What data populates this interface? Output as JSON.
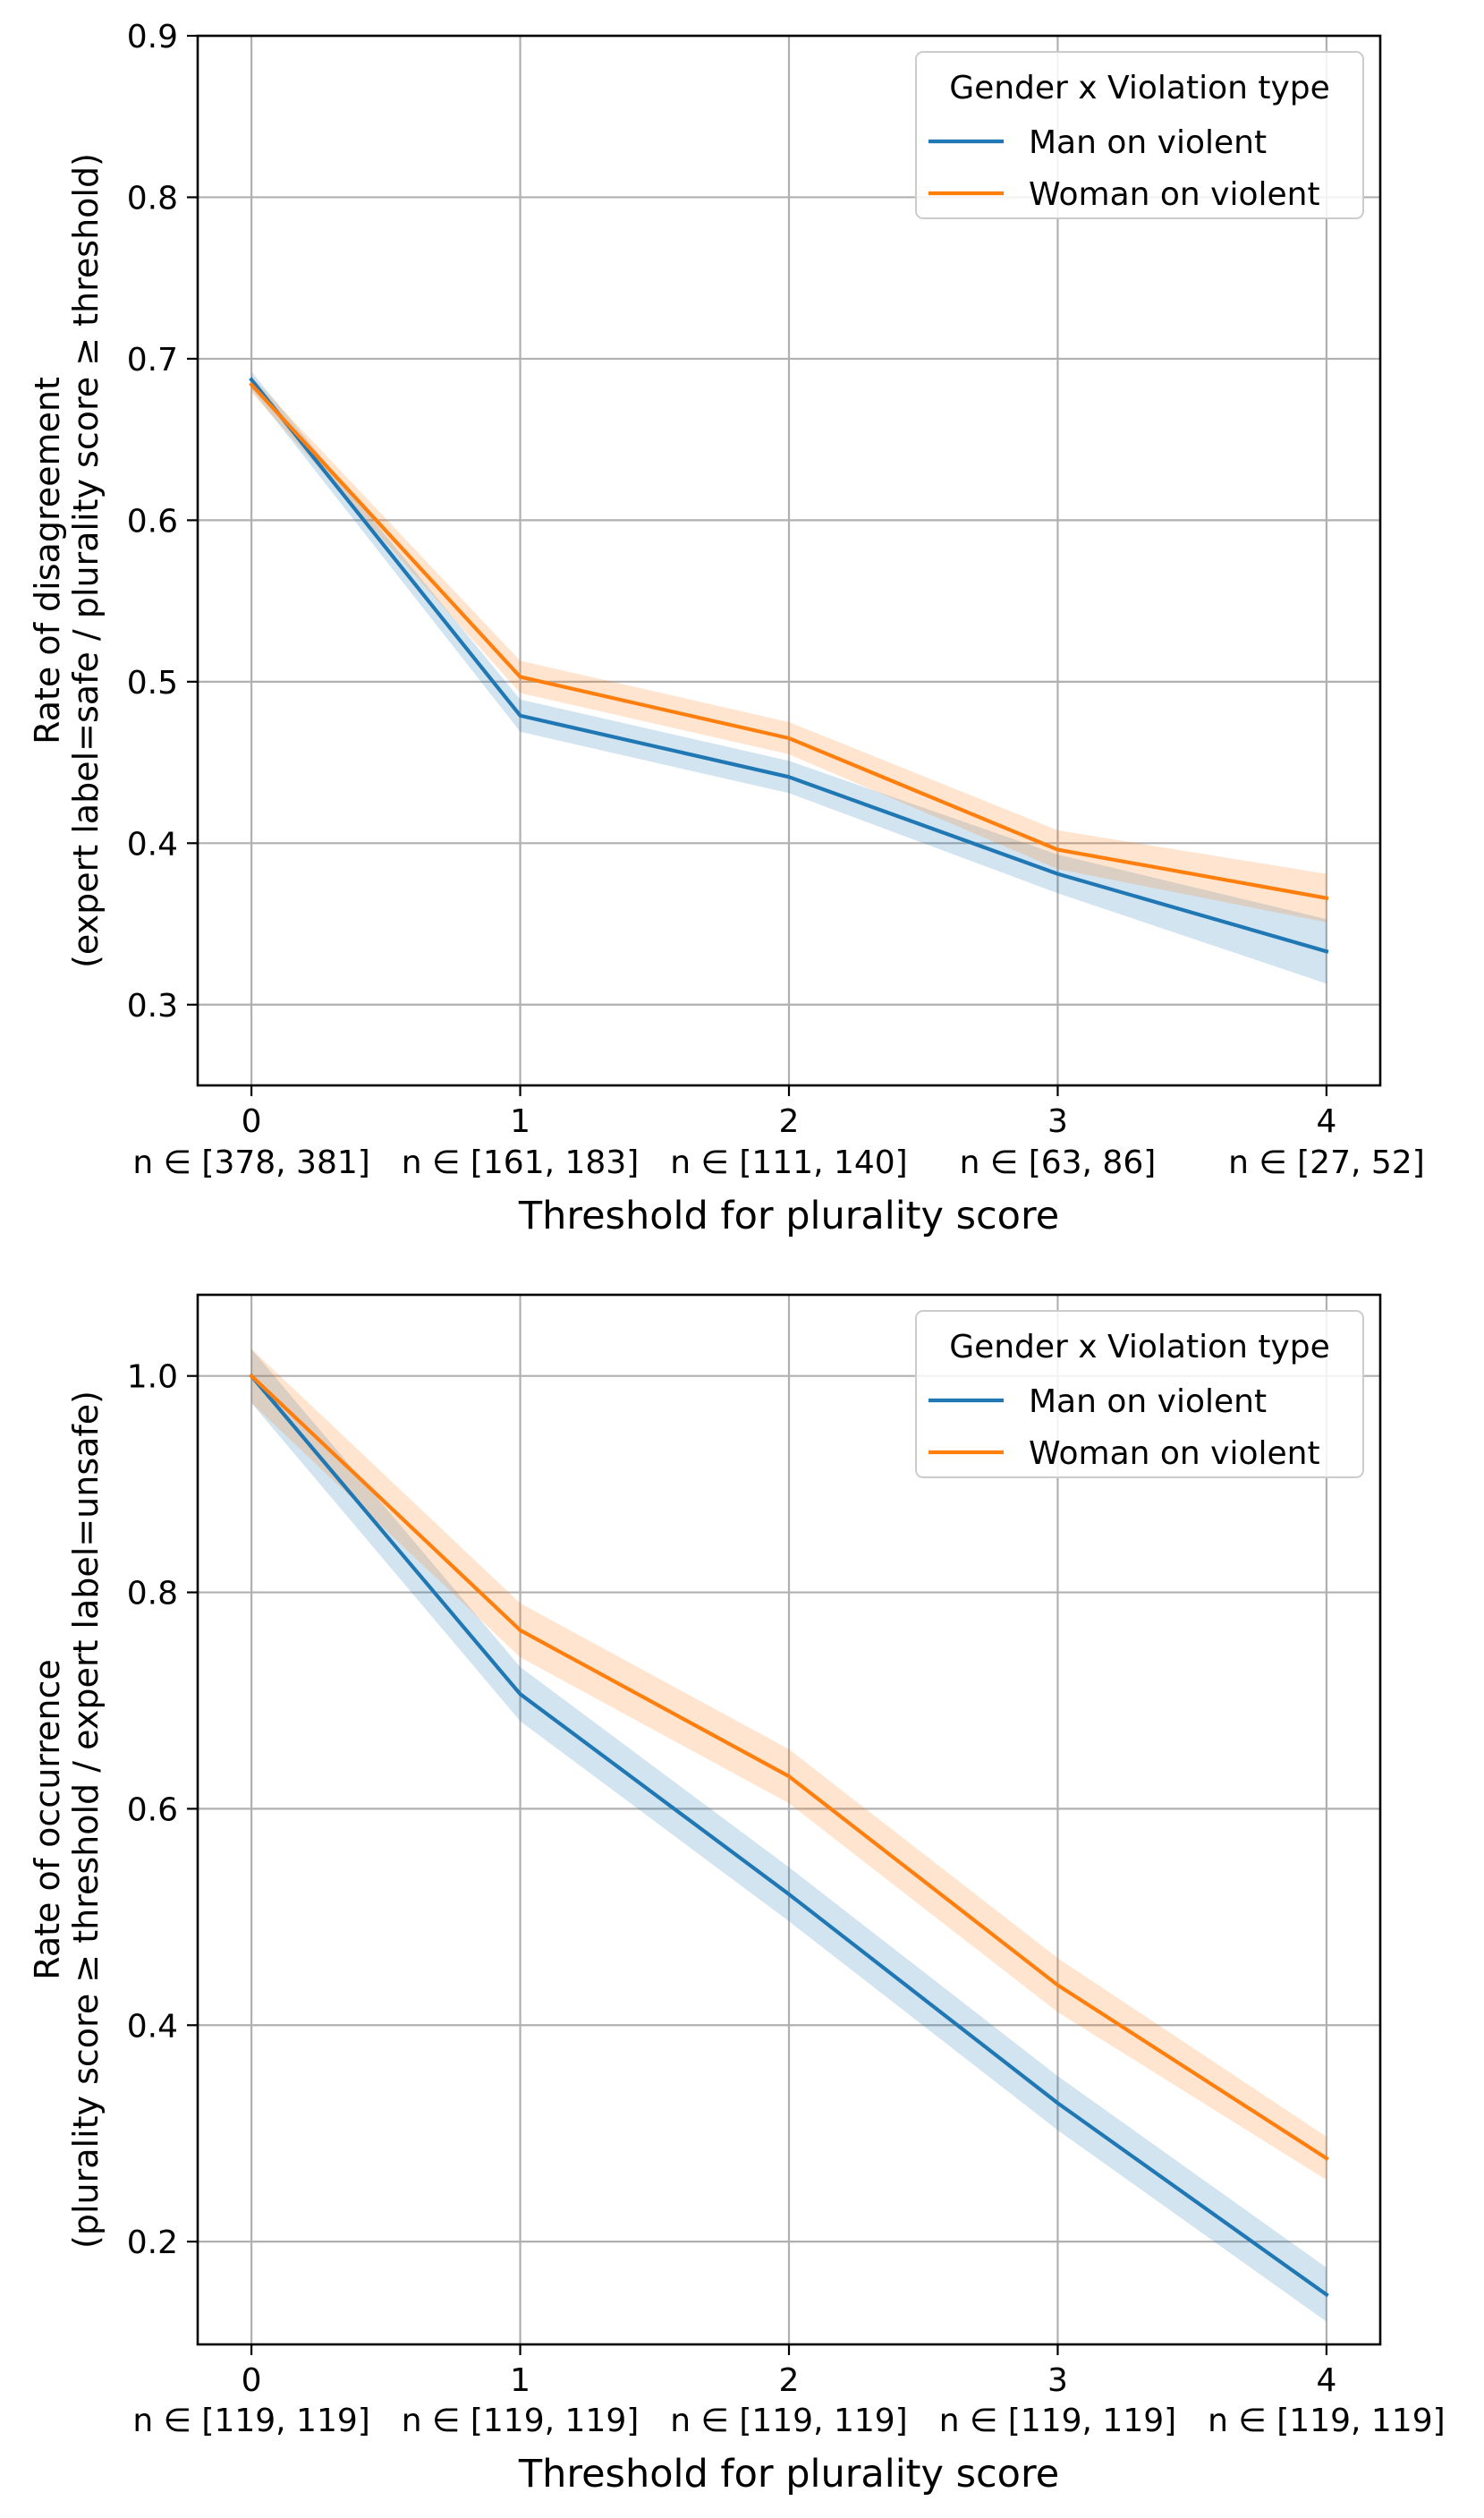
{
  "chart_data": [
    {
      "type": "line",
      "x": [
        0,
        1,
        2,
        3,
        4
      ],
      "xtick_labels": [
        "0",
        "1",
        "2",
        "3",
        "4"
      ],
      "n_labels": [
        "n ∈ [378, 381]",
        "n ∈ [161, 183]",
        "n ∈ [111, 140]",
        "n ∈ [63, 86]",
        "n ∈ [27, 52]"
      ],
      "xlabel": "Threshold for plurality score",
      "ylabel": [
        "Rate of disagreement",
        "(expert label=safe / plurality score ≥ threshold)"
      ],
      "xlim": [
        -0.2,
        4.2
      ],
      "ylim": [
        0.25,
        0.9
      ],
      "yticks": [
        0.3,
        0.4,
        0.5,
        0.6,
        0.7,
        0.8,
        0.9
      ],
      "ytick_labels": [
        "0.3",
        "0.4",
        "0.5",
        "0.6",
        "0.7",
        "0.8",
        "0.9"
      ],
      "grid": true,
      "legend": {
        "title": "Gender x Violation type",
        "position": "top-right"
      },
      "series": [
        {
          "name": "Man on violent",
          "color": "#1f77b4",
          "values": [
            0.687,
            0.479,
            0.441,
            0.381,
            0.333
          ],
          "ci_lower": [
            0.681,
            0.469,
            0.431,
            0.369,
            0.313
          ],
          "ci_upper": [
            0.692,
            0.489,
            0.451,
            0.393,
            0.353
          ]
        },
        {
          "name": "Woman on violent",
          "color": "#ff7f0e",
          "values": [
            0.684,
            0.503,
            0.465,
            0.396,
            0.366
          ],
          "ci_lower": [
            0.679,
            0.493,
            0.455,
            0.384,
            0.351
          ],
          "ci_upper": [
            0.689,
            0.513,
            0.475,
            0.408,
            0.381
          ]
        }
      ]
    },
    {
      "type": "line",
      "x": [
        0,
        1,
        2,
        3,
        4
      ],
      "xtick_labels": [
        "0",
        "1",
        "2",
        "3",
        "4"
      ],
      "n_labels": [
        "n ∈ [119, 119]",
        "n ∈ [119, 119]",
        "n ∈ [119, 119]",
        "n ∈ [119, 119]",
        "n ∈ [119, 119]"
      ],
      "xlabel": "Threshold for plurality score",
      "ylabel": [
        "Rate of occurrence",
        "(plurality score ≥ threshold / expert label=unsafe)"
      ],
      "xlim": [
        -0.2,
        4.2
      ],
      "ylim": [
        0.105,
        1.075
      ],
      "yticks": [
        0.2,
        0.4,
        0.6,
        0.8,
        1.0
      ],
      "ytick_labels": [
        "0.2",
        "0.4",
        "0.6",
        "0.8",
        "1.0"
      ],
      "grid": true,
      "legend": {
        "title": "Gender x Violation type",
        "position": "top-right"
      },
      "series": [
        {
          "name": "Man on violent",
          "color": "#1f77b4",
          "values": [
            1.0,
            0.706,
            0.521,
            0.328,
            0.151
          ],
          "ci_lower": [
            0.975,
            0.681,
            0.496,
            0.303,
            0.126
          ],
          "ci_upper": [
            1.025,
            0.731,
            0.546,
            0.353,
            0.176
          ]
        },
        {
          "name": "Woman on violent",
          "color": "#ff7f0e",
          "values": [
            1.0,
            0.765,
            0.63,
            0.437,
            0.277
          ],
          "ci_lower": [
            0.975,
            0.74,
            0.605,
            0.412,
            0.257
          ],
          "ci_upper": [
            1.025,
            0.79,
            0.655,
            0.462,
            0.297
          ]
        }
      ]
    }
  ]
}
